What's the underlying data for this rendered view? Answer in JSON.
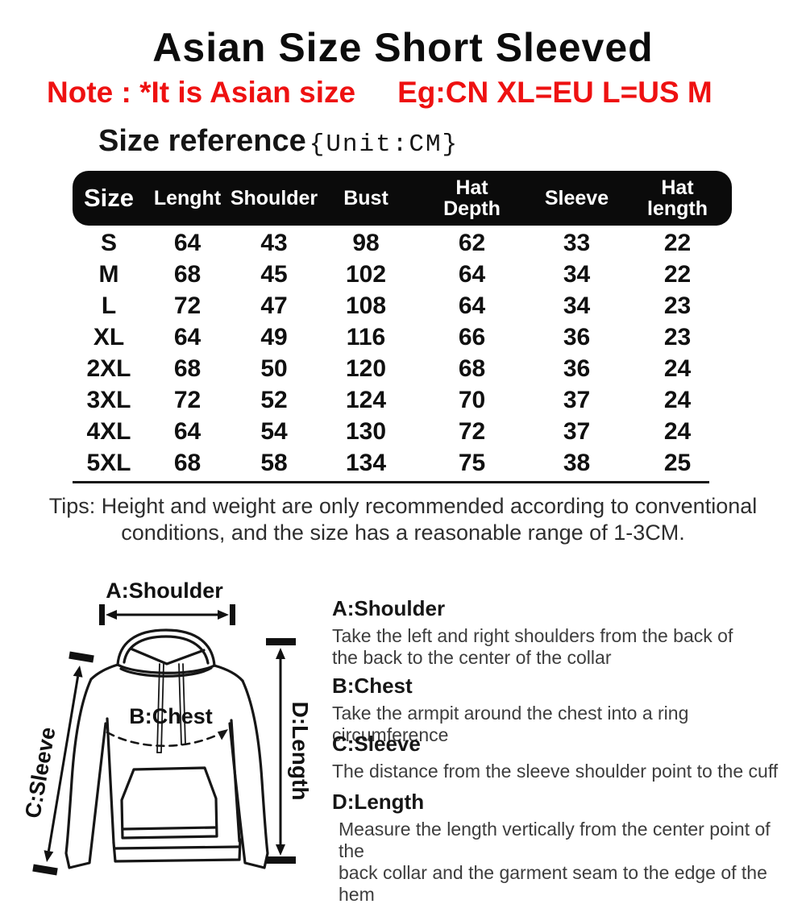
{
  "title": "Asian Size Short Sleeved",
  "note": {
    "left": "Note : *It is Asian size",
    "right": "Eg:CN XL=EU L=US M"
  },
  "size_reference": {
    "heading": "Size reference",
    "unit": "{Unit:CM}"
  },
  "table": {
    "columns": [
      {
        "line1": "Size"
      },
      {
        "line1": "Lenght"
      },
      {
        "line1": "Shoulder"
      },
      {
        "line1": "Bust"
      },
      {
        "line1": "Hat",
        "line2": "Depth"
      },
      {
        "line1": "Sleeve"
      },
      {
        "line1": "Hat",
        "line2": "length"
      }
    ],
    "rows": [
      [
        "S",
        "64",
        "43",
        "98",
        "62",
        "33",
        "22"
      ],
      [
        "M",
        "68",
        "45",
        "102",
        "64",
        "34",
        "22"
      ],
      [
        "L",
        "72",
        "47",
        "108",
        "64",
        "34",
        "23"
      ],
      [
        "XL",
        "64",
        "49",
        "116",
        "66",
        "36",
        "23"
      ],
      [
        "2XL",
        "68",
        "50",
        "120",
        "68",
        "36",
        "24"
      ],
      [
        "3XL",
        "72",
        "52",
        "124",
        "70",
        "37",
        "24"
      ],
      [
        "4XL",
        "64",
        "54",
        "130",
        "72",
        "37",
        "24"
      ],
      [
        "5XL",
        "68",
        "58",
        "134",
        "75",
        "38",
        "25"
      ]
    ]
  },
  "tips": {
    "line1": "Tips: Height and weight are only recommended according to conventional",
    "line2": "conditions, and the size has a reasonable range of 1-3CM."
  },
  "diagram": {
    "shoulder_label": "A:Shoulder",
    "chest_label": "B:Chest",
    "sleeve_label": "C:Sleeve",
    "length_label": "D:Length"
  },
  "measurements": [
    {
      "heading": "A:Shoulder",
      "lines": [
        "Take the left and right shoulders from the back of",
        "the back to the center of the collar"
      ]
    },
    {
      "heading": "B:Chest",
      "lines": [
        "Take the armpit around the chest into a ring circumference"
      ]
    },
    {
      "heading": "C:Sleeve",
      "lines": [
        "The distance from the sleeve shoulder point to the cuff"
      ]
    },
    {
      "heading": "D:Length",
      "lines": [
        "Measure the length vertically from the center point of the",
        "back collar and the garment seam to the edge of the hem"
      ]
    }
  ],
  "colors": {
    "accent_red": "#ee1111",
    "header_bg": "#0b0b0b",
    "header_text": "#ffffff",
    "ink": "#111111",
    "body_text": "#3d3d3d"
  }
}
